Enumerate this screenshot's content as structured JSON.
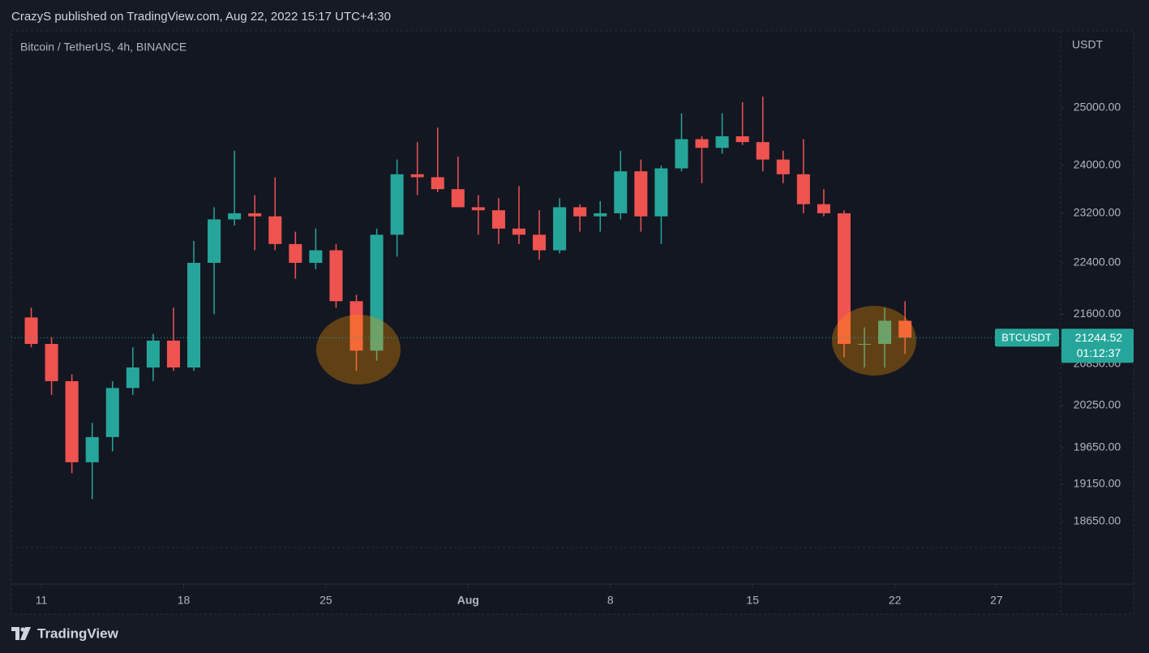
{
  "header": {
    "publisher": "CrazyS published on TradingView.com, Aug 22, 2022 15:17 UTC+4:30"
  },
  "chart_data": {
    "type": "candlestick",
    "title": "Bitcoin / TetherUS, 4h, BINANCE",
    "ylabel": "USDT",
    "log_scale": true,
    "grid": false,
    "up_color": "#26a69a",
    "down_color": "#ef5350",
    "x": [
      "Jul 10",
      "Jul 11",
      "Jul 12",
      "Jul 13",
      "Jul 14",
      "Jul 15",
      "Jul 16",
      "Jul 17",
      "Jul 18",
      "Jul 19",
      "Jul 20",
      "Jul 21",
      "Jul 22",
      "Jul 23",
      "Jul 24",
      "Jul 25",
      "Jul 26",
      "Jul 27",
      "Jul 28",
      "Jul 29",
      "Jul 30",
      "Jul 31",
      "Aug 1",
      "Aug 2",
      "Aug 3",
      "Aug 4",
      "Aug 5",
      "Aug 6",
      "Aug 7",
      "Aug 8",
      "Aug 9",
      "Aug 10",
      "Aug 11",
      "Aug 12",
      "Aug 13",
      "Aug 14",
      "Aug 15",
      "Aug 16",
      "Aug 17",
      "Aug 18",
      "Aug 19",
      "Aug 20",
      "Aug 21",
      "Aug 22"
    ],
    "open": [
      21550,
      21150,
      20600,
      19450,
      19800,
      20500,
      20800,
      21200,
      20800,
      22400,
      23100,
      23200,
      23150,
      22700,
      22400,
      22600,
      21800,
      21050,
      22850,
      23850,
      23800,
      23600,
      23300,
      23250,
      22950,
      22850,
      22600,
      23300,
      23150,
      23200,
      23900,
      23150,
      23950,
      24450,
      24300,
      24500,
      24400,
      24100,
      23850,
      23350,
      23200,
      21150,
      21150,
      21500
    ],
    "high": [
      21700,
      21250,
      20700,
      20000,
      20600,
      21100,
      21300,
      21700,
      22750,
      23300,
      24250,
      23500,
      23800,
      22900,
      22950,
      22700,
      21900,
      22950,
      24100,
      24400,
      24650,
      24150,
      23500,
      23450,
      23650,
      23250,
      23450,
      23350,
      23400,
      24250,
      24100,
      24000,
      24900,
      24500,
      24900,
      25100,
      25200,
      24250,
      24450,
      23600,
      23250,
      21400,
      21700,
      21800
    ],
    "low": [
      21100,
      20400,
      19300,
      18950,
      19600,
      20400,
      20600,
      20750,
      20750,
      21600,
      23000,
      22600,
      22600,
      22150,
      22300,
      21700,
      20750,
      20900,
      22500,
      23500,
      23550,
      23300,
      22850,
      22700,
      22700,
      22450,
      22550,
      22900,
      22900,
      23100,
      22900,
      22700,
      23900,
      23700,
      24200,
      24350,
      23900,
      23700,
      23200,
      23150,
      20950,
      20800,
      20800,
      21000
    ],
    "close": [
      21150,
      20600,
      19450,
      19800,
      20500,
      20800,
      21200,
      20800,
      22400,
      23100,
      23200,
      23150,
      22700,
      22400,
      22600,
      21800,
      21050,
      22850,
      23850,
      23800,
      23600,
      23300,
      23250,
      22950,
      22850,
      22600,
      23300,
      23150,
      23200,
      23900,
      23150,
      23950,
      24450,
      24300,
      24500,
      24400,
      24100,
      23850,
      23350,
      23200,
      21150,
      21150,
      21500,
      21244.52
    ],
    "xlim": [
      "Jul 10",
      "Aug 28"
    ],
    "xticks": [
      {
        "value": "Jul 11",
        "label": "11"
      },
      {
        "value": "Jul 18",
        "label": "18"
      },
      {
        "value": "Jul 25",
        "label": "25"
      },
      {
        "value": "Aug 1",
        "label": "Aug"
      },
      {
        "value": "Aug 8",
        "label": "8"
      },
      {
        "value": "Aug 15",
        "label": "15"
      },
      {
        "value": "Aug 22",
        "label": "22"
      },
      {
        "value": "Aug 27",
        "label": "27"
      }
    ],
    "ylim": [
      18310,
      26400
    ],
    "yticks": [
      {
        "value": 25000,
        "label": "25000.00"
      },
      {
        "value": 24000,
        "label": "24000.00"
      },
      {
        "value": 23200,
        "label": "23200.00"
      },
      {
        "value": 22400,
        "label": "22400.00"
      },
      {
        "value": 21600,
        "label": "21600.00"
      },
      {
        "value": 20850,
        "label": "20850.00"
      },
      {
        "value": 20250,
        "label": "20250.00"
      },
      {
        "value": 19650,
        "label": "19650.00"
      },
      {
        "value": 19150,
        "label": "19150.00"
      },
      {
        "value": 18650,
        "label": "18650.00"
      }
    ],
    "symbol": "BTCUSDT",
    "last_price": 21244.52,
    "countdown": "01:12:37"
  },
  "footer": {
    "brand": "TradingView"
  }
}
